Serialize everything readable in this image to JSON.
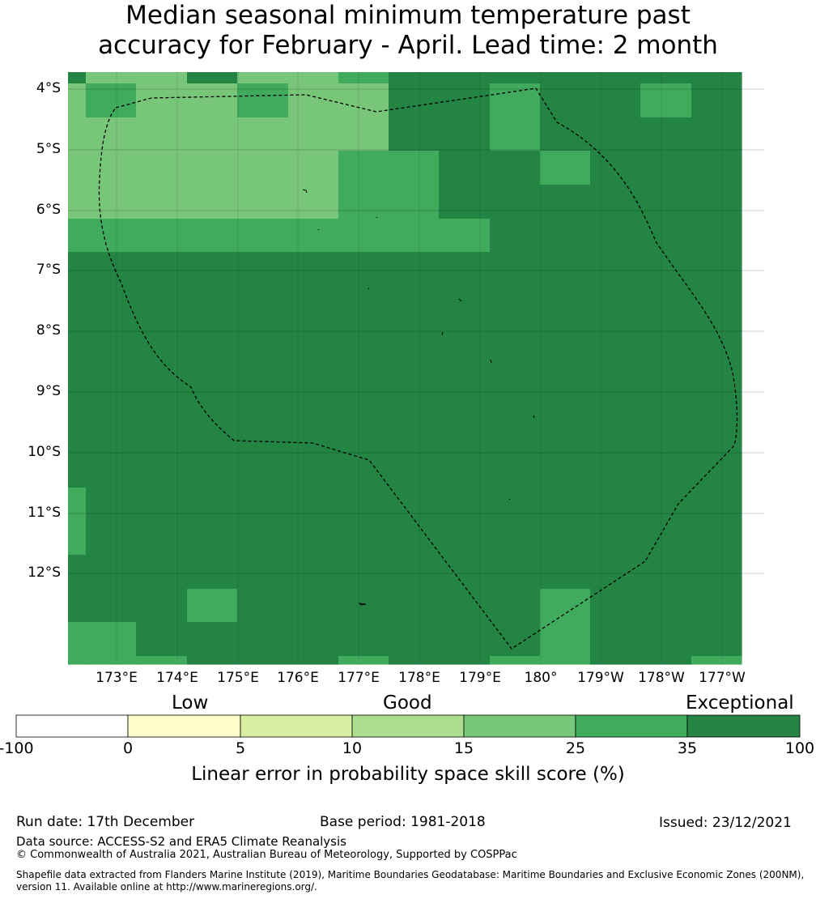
{
  "title_line1": "Median seasonal minimum temperature past",
  "title_line2": "accuracy for February - April. Lead time: 2 month",
  "lat_labels": [
    "4°S",
    "5°S",
    "6°S",
    "7°S",
    "8°S",
    "9°S",
    "10°S",
    "11°S",
    "12°S"
  ],
  "lon_labels": [
    "173°E",
    "174°E",
    "175°E",
    "176°E",
    "177°E",
    "178°E",
    "179°E",
    "180°",
    "179°W",
    "178°W",
    "177°W"
  ],
  "colorbar": {
    "category_labels": [
      "Low",
      "Good",
      "Exceptional"
    ],
    "ticks": [
      "-100",
      "0",
      "5",
      "10",
      "15",
      "25",
      "35",
      "100"
    ],
    "colors": [
      "#ffffff",
      "#ffffcc",
      "#d9f0a3",
      "#addd8e",
      "#78c679",
      "#41ab5d",
      "#238443"
    ],
    "label": "Linear error in probability space skill score (%)"
  },
  "grid_values": [
    [
      35,
      15,
      15,
      35,
      15,
      15,
      25,
      35,
      35,
      35,
      35,
      35,
      35,
      35
    ],
    [
      15,
      25,
      15,
      15,
      25,
      15,
      15,
      35,
      35,
      25,
      35,
      35,
      25,
      35
    ],
    [
      15,
      15,
      15,
      15,
      15,
      15,
      15,
      35,
      35,
      25,
      35,
      35,
      35,
      35
    ],
    [
      15,
      15,
      15,
      15,
      15,
      15,
      25,
      25,
      35,
      35,
      25,
      35,
      35,
      35
    ],
    [
      15,
      15,
      15,
      15,
      15,
      15,
      25,
      25,
      35,
      35,
      35,
      35,
      35,
      35
    ],
    [
      25,
      25,
      25,
      25,
      25,
      25,
      25,
      25,
      25,
      35,
      35,
      35,
      35,
      35
    ],
    [
      35,
      35,
      35,
      35,
      35,
      35,
      35,
      35,
      35,
      35,
      35,
      35,
      35,
      35
    ],
    [
      35,
      35,
      35,
      35,
      35,
      35,
      35,
      35,
      35,
      35,
      35,
      35,
      35,
      35
    ],
    [
      35,
      35,
      35,
      35,
      35,
      35,
      35,
      35,
      35,
      35,
      35,
      35,
      35,
      35
    ],
    [
      35,
      35,
      35,
      35,
      35,
      35,
      35,
      35,
      35,
      35,
      35,
      35,
      35,
      35
    ],
    [
      35,
      35,
      35,
      35,
      35,
      35,
      35,
      35,
      35,
      35,
      35,
      35,
      35,
      35
    ],
    [
      35,
      35,
      35,
      35,
      35,
      35,
      35,
      35,
      35,
      35,
      35,
      35,
      35,
      35
    ],
    [
      35,
      35,
      35,
      35,
      35,
      35,
      35,
      35,
      35,
      35,
      35,
      35,
      35,
      35
    ],
    [
      25,
      35,
      35,
      35,
      35,
      35,
      35,
      35,
      35,
      35,
      35,
      35,
      35,
      35
    ],
    [
      25,
      35,
      35,
      35,
      35,
      35,
      35,
      35,
      35,
      35,
      35,
      35,
      35,
      35
    ],
    [
      35,
      35,
      35,
      35,
      35,
      35,
      35,
      35,
      35,
      35,
      35,
      35,
      35,
      35
    ],
    [
      35,
      35,
      35,
      25,
      35,
      35,
      35,
      35,
      35,
      35,
      25,
      35,
      35,
      35
    ],
    [
      25,
      25,
      35,
      35,
      35,
      35,
      35,
      35,
      35,
      35,
      25,
      35,
      35,
      35
    ],
    [
      25,
      25,
      25,
      35,
      35,
      35,
      25,
      35,
      35,
      25,
      25,
      35,
      35,
      25
    ]
  ],
  "footer": {
    "run_date": "Run date: 17th December",
    "base_period": "Base period: 1981-2018",
    "issued": "Issued: 23/12/2021",
    "data_source": "Data source: ACCESS-S2 and ERA5 Climate Reanalysis",
    "copyright": "© Commonwealth of Australia 2021, Australian Bureau of Meteorology, Supported by COSPPac",
    "shapefile_line1": "Shapefile data extracted from Flanders Marine Institute (2019), Maritime Boundaries Geodatabase: Maritime Boundaries and Exclusive Economic Zones (200NM),",
    "shapefile_line2": "version 11. Available online at http://www.marineregions.org/."
  }
}
